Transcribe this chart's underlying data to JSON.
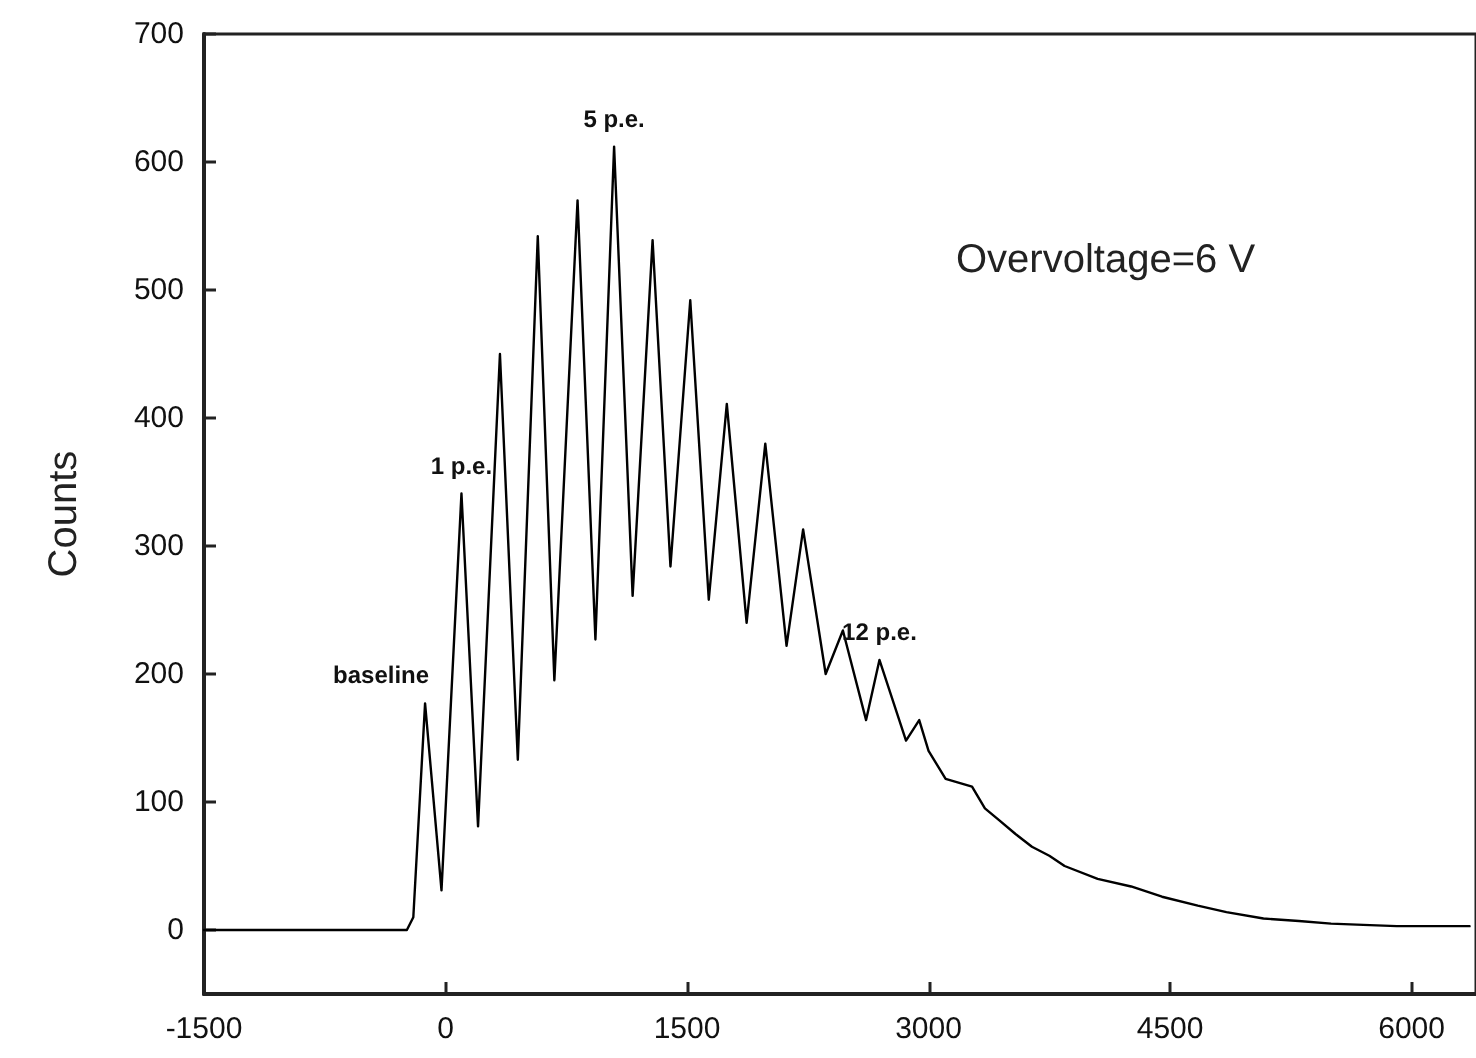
{
  "chart_data": {
    "type": "line",
    "ylabel": "Counts",
    "annotations": [
      {
        "text": "baseline",
        "x": -127,
        "y": 177
      },
      {
        "text": "1 p.e.",
        "x": 99,
        "y": 341
      },
      {
        "text": "5 p.e.",
        "x": 1047,
        "y": 612
      },
      {
        "text": "12 p.e.",
        "x": 2695,
        "y": 211
      },
      "Overvoltage=6 V"
    ],
    "series": [
      {
        "color": "#000000",
        "x": [
          -1500,
          -240,
          -200,
          -127,
          -25,
          99,
          202,
          338,
          449,
          573,
          676,
          820,
          931,
          1047,
          1162,
          1286,
          1397,
          1520,
          1635,
          1747,
          1870,
          1986,
          2118,
          2221,
          2361,
          2468,
          2612,
          2695,
          2860,
          2942,
          3000,
          3106,
          3270,
          3350,
          3436,
          3540,
          3642,
          3750,
          3845,
          4050,
          4258,
          4450,
          4672,
          4850,
          5080,
          5300,
          5500,
          5700,
          5908,
          6150,
          6360
        ],
        "values": [
          0,
          0,
          10,
          177,
          31,
          341,
          81,
          450,
          133,
          542,
          195,
          570,
          227,
          612,
          261,
          539,
          284,
          492,
          258,
          411,
          240,
          380,
          222,
          313,
          200,
          234,
          164,
          211,
          148,
          164,
          140,
          118,
          112,
          95,
          86,
          75,
          65,
          58,
          50,
          40,
          34,
          26,
          19,
          14,
          9,
          7,
          5,
          4,
          3,
          3,
          3
        ]
      }
    ],
    "xlim": [
      -1500,
      6400
    ],
    "xticks": [
      -1500,
      0,
      1500,
      3000,
      4500,
      6000
    ],
    "ylim": [
      -50,
      700
    ],
    "yticks": [
      0,
      100,
      200,
      300,
      400,
      500,
      600,
      700
    ],
    "grid": false,
    "marker": "none",
    "line_style": "solid"
  }
}
